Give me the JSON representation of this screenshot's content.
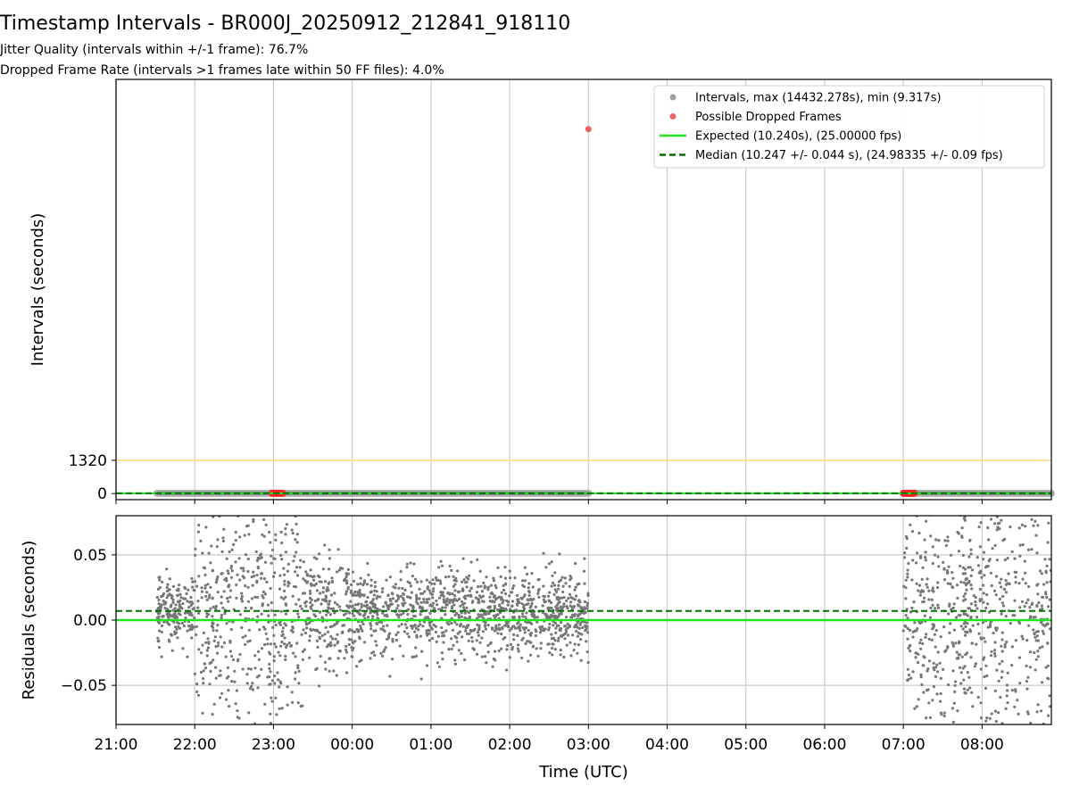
{
  "chart_data": {
    "title": "Timestamp Intervals - BR000J_20250912_212841_918110",
    "subtitles": [
      "Jitter Quality (intervals within +/-1 frame): 76.7%",
      "Dropped Frame Rate (intervals >1 frames late within 50 FF files): 4.0%"
    ],
    "xlabel": "Time (UTC)",
    "x_ticks": [
      "21:00",
      "22:00",
      "23:00",
      "00:00",
      "01:00",
      "02:00",
      "03:00",
      "04:00",
      "05:00",
      "06:00",
      "07:00",
      "08:00"
    ],
    "x_range_hours": [
      21.0,
      32.88
    ],
    "grid": true,
    "top_panel": {
      "type": "scatter",
      "ylabel": "Intervals (seconds)",
      "y_ticks": [
        "0",
        "1320"
      ],
      "ylim": [
        -240,
        16400
      ],
      "threshold_line": {
        "value": 1320,
        "color": "#ffd87a"
      },
      "segments_hours": [
        [
          21.52,
          27.0
        ],
        [
          31.0,
          32.88
        ]
      ],
      "dropped_clusters_hours": [
        [
          22.98,
          23.12
        ],
        [
          31.0,
          31.14
        ]
      ],
      "outlier": {
        "x_hours": 27.0,
        "y": 14432.278
      },
      "legend_position": "upper-right",
      "legend": [
        {
          "label": "Intervals, max (14432.278s), min (9.317s)",
          "kind": "dot",
          "color": "#9e9e9e"
        },
        {
          "label": "Possible Dropped Frames",
          "kind": "dot",
          "color": "#f06060"
        },
        {
          "label": "Expected (10.240s), (25.00000 fps)",
          "kind": "line",
          "color": "#1ee61e"
        },
        {
          "label": "Median (10.247 +/- 0.044 s), (24.98335 +/- 0.09 fps)",
          "kind": "dash",
          "color": "#007000"
        }
      ]
    },
    "bottom_panel": {
      "type": "scatter",
      "ylabel": "Residuals (seconds)",
      "y_ticks": [
        "0.05",
        "0.00",
        "−0.05"
      ],
      "ylim": [
        -0.08,
        0.08
      ],
      "expected_residual": 0.0,
      "median_residual": 0.007,
      "point_color": "#777777"
    },
    "colors": {
      "expected": "#1ee61e",
      "median": "#007000",
      "dropped": "#ff2020",
      "intervals": "#555555",
      "grid": "#cccccc"
    }
  }
}
